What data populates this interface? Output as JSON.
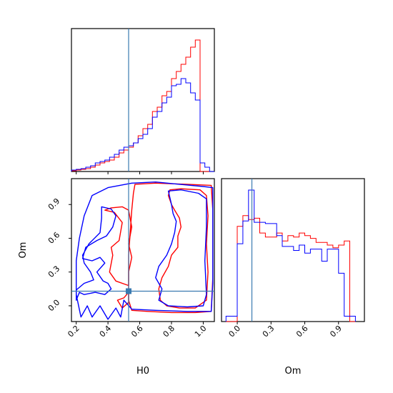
{
  "chart_data": [
    {
      "panel": "hist-H0",
      "type": "histogram",
      "xlim": [
        0.17,
        1.07
      ],
      "truth": 0.53,
      "series": [
        {
          "color": "#ff0000",
          "edges": [
            0.17,
            0.2,
            0.23,
            0.26,
            0.29,
            0.32,
            0.35,
            0.38,
            0.41,
            0.44,
            0.47,
            0.5,
            0.53,
            0.56,
            0.59,
            0.62,
            0.65,
            0.68,
            0.71,
            0.74,
            0.77,
            0.8,
            0.83,
            0.86,
            0.89,
            0.92,
            0.95,
            0.98,
            1.01,
            1.04,
            1.07
          ],
          "values": [
            0.005,
            0.01,
            0.015,
            0.02,
            0.03,
            0.045,
            0.06,
            0.07,
            0.08,
            0.1,
            0.13,
            0.15,
            0.17,
            0.2,
            0.25,
            0.3,
            0.33,
            0.42,
            0.45,
            0.53,
            0.56,
            0.65,
            0.7,
            0.75,
            0.8,
            0.87,
            0.92,
            0.0,
            0.0,
            0.0
          ]
        },
        {
          "color": "#0000ff",
          "edges": [
            0.17,
            0.2,
            0.23,
            0.26,
            0.29,
            0.32,
            0.35,
            0.38,
            0.41,
            0.44,
            0.47,
            0.5,
            0.53,
            0.56,
            0.59,
            0.62,
            0.65,
            0.68,
            0.71,
            0.74,
            0.77,
            0.8,
            0.83,
            0.86,
            0.89,
            0.92,
            0.95,
            0.98,
            1.01,
            1.04,
            1.07
          ],
          "values": [
            0.01,
            0.015,
            0.02,
            0.03,
            0.04,
            0.06,
            0.07,
            0.08,
            0.1,
            0.12,
            0.15,
            0.17,
            0.18,
            0.2,
            0.23,
            0.26,
            0.3,
            0.38,
            0.42,
            0.48,
            0.52,
            0.6,
            0.61,
            0.65,
            0.62,
            0.55,
            0.5,
            0.06,
            0.03,
            0.0
          ]
        }
      ]
    },
    {
      "panel": "corner-H0-Om",
      "type": "contour",
      "xlabel": "H0",
      "ylabel": "Om",
      "xlim": [
        0.17,
        1.07
      ],
      "ylim": [
        -0.14,
        1.13
      ],
      "xticks": [
        "0.2",
        "0.4",
        "0.6",
        "0.8",
        "1.0"
      ],
      "xtick_values": [
        0.2,
        0.4,
        0.6,
        0.8,
        1.0
      ],
      "yticks": [
        "0.0",
        "0.3",
        "0.6",
        "0.9"
      ],
      "ytick_values": [
        0.0,
        0.3,
        0.6,
        0.9
      ],
      "truth": {
        "x": 0.53,
        "y": 0.13
      },
      "series": [
        {
          "color": "#ff0000",
          "contours": [
            [
              [
                0.57,
                1.08
              ],
              [
                0.7,
                1.09
              ],
              [
                0.9,
                1.08
              ],
              [
                1.05,
                1.07
              ],
              [
                1.06,
                0.85
              ],
              [
                1.06,
                0.55
              ],
              [
                1.06,
                0.25
              ],
              [
                1.05,
                -0.05
              ],
              [
                0.95,
                -0.06
              ],
              [
                0.8,
                -0.06
              ],
              [
                0.65,
                -0.05
              ],
              [
                0.55,
                -0.04
              ],
              [
                0.53,
                0.05
              ],
              [
                0.53,
                0.25
              ],
              [
                0.53,
                0.45
              ],
              [
                0.54,
                0.65
              ],
              [
                0.55,
                0.85
              ],
              [
                0.56,
                1.0
              ],
              [
                0.57,
                1.08
              ]
            ],
            [
              [
                0.79,
                1.03
              ],
              [
                0.86,
                1.04
              ],
              [
                0.98,
                1.03
              ],
              [
                1.02,
                0.98
              ],
              [
                1.03,
                0.8
              ],
              [
                1.02,
                0.55
              ],
              [
                1.03,
                0.3
              ],
              [
                1.02,
                0.05
              ],
              [
                0.95,
                -0.02
              ],
              [
                0.85,
                -0.02
              ],
              [
                0.77,
                0.0
              ],
              [
                0.73,
                0.05
              ],
              [
                0.72,
                0.15
              ],
              [
                0.74,
                0.25
              ],
              [
                0.78,
                0.35
              ],
              [
                0.8,
                0.45
              ],
              [
                0.84,
                0.52
              ],
              [
                0.84,
                0.62
              ],
              [
                0.86,
                0.7
              ],
              [
                0.85,
                0.78
              ],
              [
                0.82,
                0.85
              ],
              [
                0.8,
                0.9
              ],
              [
                0.78,
                0.98
              ],
              [
                0.79,
                1.03
              ]
            ],
            [
              [
                0.38,
                0.85
              ],
              [
                0.44,
                0.83
              ],
              [
                0.49,
                0.74
              ],
              [
                0.47,
                0.58
              ],
              [
                0.42,
                0.52
              ],
              [
                0.43,
                0.45
              ],
              [
                0.41,
                0.3
              ],
              [
                0.45,
                0.22
              ],
              [
                0.53,
                0.18
              ],
              [
                0.53,
                0.3
              ],
              [
                0.55,
                0.43
              ],
              [
                0.53,
                0.55
              ],
              [
                0.55,
                0.7
              ],
              [
                0.53,
                0.85
              ],
              [
                0.49,
                0.88
              ],
              [
                0.42,
                0.87
              ],
              [
                0.38,
                0.85
              ]
            ],
            [
              [
                0.46,
                0.05
              ],
              [
                0.5,
                0.07
              ],
              [
                0.53,
                0.12
              ],
              [
                0.53,
                0.03
              ],
              [
                0.49,
                -0.02
              ],
              [
                0.46,
                0.05
              ]
            ]
          ]
        },
        {
          "color": "#0000ff",
          "contours": [
            [
              [
                0.3,
                0.98
              ],
              [
                0.4,
                1.05
              ],
              [
                0.55,
                1.09
              ],
              [
                0.7,
                1.1
              ],
              [
                0.85,
                1.08
              ],
              [
                1.0,
                1.06
              ],
              [
                1.06,
                1.05
              ],
              [
                1.06,
                0.8
              ],
              [
                1.06,
                0.5
              ],
              [
                1.06,
                0.2
              ],
              [
                1.05,
                -0.05
              ],
              [
                0.9,
                -0.05
              ],
              [
                0.7,
                -0.04
              ],
              [
                0.55,
                -0.03
              ],
              [
                0.5,
                0.05
              ],
              [
                0.48,
                -0.1
              ],
              [
                0.45,
                -0.02
              ],
              [
                0.4,
                -0.12
              ],
              [
                0.35,
                0.0
              ],
              [
                0.3,
                -0.1
              ],
              [
                0.27,
                0.0
              ],
              [
                0.23,
                -0.1
              ],
              [
                0.2,
                0.1
              ],
              [
                0.2,
                0.4
              ],
              [
                0.22,
                0.6
              ],
              [
                0.25,
                0.8
              ],
              [
                0.3,
                0.98
              ]
            ],
            [
              [
                0.78,
                1.02
              ],
              [
                0.86,
                1.03
              ],
              [
                0.97,
                1.0
              ],
              [
                1.02,
                0.95
              ],
              [
                1.02,
                0.7
              ],
              [
                1.01,
                0.4
              ],
              [
                1.02,
                0.1
              ],
              [
                1.0,
                0.0
              ],
              [
                0.9,
                -0.01
              ],
              [
                0.78,
                0.0
              ],
              [
                0.72,
                0.05
              ],
              [
                0.74,
                0.15
              ],
              [
                0.7,
                0.25
              ],
              [
                0.72,
                0.35
              ],
              [
                0.77,
                0.45
              ],
              [
                0.8,
                0.55
              ],
              [
                0.82,
                0.65
              ],
              [
                0.83,
                0.75
              ],
              [
                0.81,
                0.82
              ],
              [
                0.8,
                0.9
              ],
              [
                0.78,
                1.02
              ]
            ],
            [
              [
                0.36,
                0.88
              ],
              [
                0.42,
                0.86
              ],
              [
                0.45,
                0.8
              ],
              [
                0.43,
                0.7
              ],
              [
                0.39,
                0.62
              ],
              [
                0.33,
                0.58
              ],
              [
                0.26,
                0.52
              ],
              [
                0.24,
                0.42
              ],
              [
                0.3,
                0.4
              ],
              [
                0.35,
                0.43
              ],
              [
                0.38,
                0.38
              ],
              [
                0.33,
                0.3
              ],
              [
                0.37,
                0.22
              ],
              [
                0.4,
                0.2
              ],
              [
                0.42,
                0.15
              ],
              [
                0.38,
                0.1
              ],
              [
                0.32,
                0.12
              ],
              [
                0.25,
                0.1
              ],
              [
                0.22,
                0.12
              ],
              [
                0.2,
                0.05
              ],
              [
                0.2,
                0.14
              ],
              [
                0.25,
                0.2
              ],
              [
                0.31,
                0.23
              ],
              [
                0.29,
                0.3
              ],
              [
                0.25,
                0.38
              ],
              [
                0.24,
                0.45
              ],
              [
                0.28,
                0.55
              ],
              [
                0.35,
                0.65
              ],
              [
                0.36,
                0.78
              ],
              [
                0.36,
                0.88
              ]
            ]
          ]
        }
      ]
    },
    {
      "panel": "hist-Om",
      "type": "histogram",
      "xlabel": "Om",
      "xlim": [
        -0.14,
        1.13
      ],
      "xticks": [
        "0.0",
        "0.3",
        "0.6",
        "0.9"
      ],
      "xtick_values": [
        0.0,
        0.3,
        0.6,
        0.9
      ],
      "truth": 0.13,
      "series": [
        {
          "color": "#ff0000",
          "edges": [
            -0.1,
            -0.05,
            0.0,
            0.05,
            0.1,
            0.15,
            0.2,
            0.25,
            0.3,
            0.35,
            0.4,
            0.45,
            0.5,
            0.55,
            0.6,
            0.65,
            0.7,
            0.75,
            0.8,
            0.85,
            0.9,
            0.95,
            1.0,
            1.05
          ],
          "values": [
            0.0,
            0.0,
            0.71,
            0.79,
            0.76,
            0.77,
            0.66,
            0.63,
            0.63,
            0.66,
            0.6,
            0.64,
            0.63,
            0.66,
            0.64,
            0.62,
            0.59,
            0.59,
            0.57,
            0.55,
            0.57,
            0.6,
            0.0
          ]
        },
        {
          "color": "#0000ff",
          "edges": [
            -0.1,
            -0.05,
            0.0,
            0.05,
            0.1,
            0.15,
            0.2,
            0.25,
            0.3,
            0.35,
            0.4,
            0.45,
            0.5,
            0.55,
            0.6,
            0.65,
            0.7,
            0.75,
            0.8,
            0.85,
            0.9,
            0.95,
            1.0,
            1.05
          ],
          "values": [
            0.04,
            0.04,
            0.58,
            0.75,
            0.98,
            0.74,
            0.74,
            0.73,
            0.73,
            0.64,
            0.56,
            0.56,
            0.53,
            0.57,
            0.51,
            0.54,
            0.54,
            0.45,
            0.54,
            0.54,
            0.36,
            0.04,
            0.04
          ]
        }
      ]
    }
  ]
}
